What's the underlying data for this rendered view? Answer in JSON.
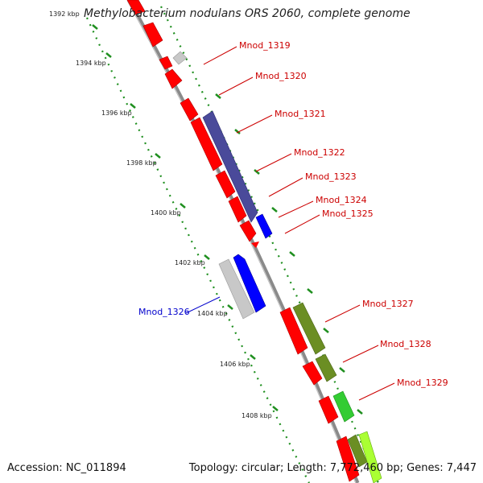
{
  "title": "Methylobacterium nodulans ORS 2060, complete genome",
  "accession": "Accession: NC_011894",
  "summary": "Topology: circular; Length: 7,772,460 bp; Genes: 7,447",
  "colors": {
    "backbone": "#888888",
    "tick": "#1f8f1f",
    "red_gene": "#ff0000",
    "navy_gene": "#4a4a9a",
    "blue_gene": "#0000ff",
    "gray_gene": "#c8c8c8",
    "olive_gene": "#6b8e23",
    "green_gene": "#33cc33",
    "lime_gene": "#aaff33",
    "label_red": "#cc0000",
    "label_blue": "#0000cc"
  },
  "ticks": [
    {
      "label": "1392 kbp"
    },
    {
      "label": "1394 kbp"
    },
    {
      "label": "1396 kbp"
    },
    {
      "label": "1398 kbp"
    },
    {
      "label": "1400 kbp"
    },
    {
      "label": "1402 kbp"
    },
    {
      "label": "1404 kbp"
    },
    {
      "label": "1406 kbp"
    },
    {
      "label": "1408 kbp"
    }
  ],
  "gene_labels": [
    {
      "name": "Mnod_1319"
    },
    {
      "name": "Mnod_1320"
    },
    {
      "name": "Mnod_1321"
    },
    {
      "name": "Mnod_1322"
    },
    {
      "name": "Mnod_1323"
    },
    {
      "name": "Mnod_1324"
    },
    {
      "name": "Mnod_1325"
    },
    {
      "name": "Mnod_1326"
    },
    {
      "name": "Mnod_1327"
    },
    {
      "name": "Mnod_1328"
    },
    {
      "name": "Mnod_1329"
    }
  ]
}
